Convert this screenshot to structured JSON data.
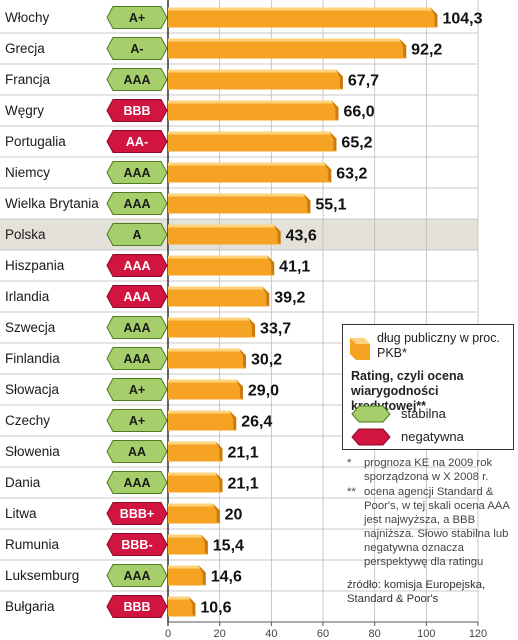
{
  "colors": {
    "bar": "#f6a323",
    "bar_top": "#fdd37b",
    "bar_side": "#c97b10",
    "stable": "#a6cf6b",
    "negative": "#d11440",
    "highlight_row": "#e3e1d8"
  },
  "chart_data": {
    "type": "bar",
    "orientation": "horizontal",
    "categories": [
      "Włochy",
      "Grecja",
      "Francja",
      "Węgry",
      "Portugalia",
      "Niemcy",
      "Wielka Brytania",
      "Polska",
      "Hiszpania",
      "Irlandia",
      "Szwecja",
      "Finlandia",
      "Słowacja",
      "Czechy",
      "Słowenia",
      "Dania",
      "Litwa",
      "Rumunia",
      "Luksemburg",
      "Bułgaria"
    ],
    "values": [
      104.3,
      92.2,
      67.7,
      66.0,
      65.2,
      63.2,
      55.1,
      43.6,
      41.1,
      39.2,
      33.7,
      30.2,
      29.0,
      26.4,
      21.1,
      21.1,
      20,
      15.4,
      14.6,
      10.6
    ],
    "value_labels": [
      "104,3",
      "92,2",
      "67,7",
      "66,0",
      "65,2",
      "63,2",
      "55,1",
      "43,6",
      "41,1",
      "39,2",
      "33,7",
      "30,2",
      "29,0",
      "26,4",
      "21,1",
      "21,1",
      "20",
      "15,4",
      "14,6",
      "10,6"
    ],
    "ratings": [
      "A+",
      "A-",
      "AAA",
      "BBB",
      "AA-",
      "AAA",
      "AAA",
      "A",
      "AAA",
      "AAA",
      "AAA",
      "AAA",
      "A+",
      "A+",
      "AA",
      "AAA",
      "BBB+",
      "BBB-",
      "AAA",
      "BBB"
    ],
    "outlooks": [
      "stable",
      "stable",
      "stable",
      "negative",
      "negative",
      "stable",
      "stable",
      "stable",
      "negative",
      "negative",
      "stable",
      "stable",
      "stable",
      "stable",
      "stable",
      "stable",
      "negative",
      "negative",
      "stable",
      "negative"
    ],
    "highlighted_category": "Polska",
    "xlim": [
      0,
      120
    ],
    "xticks": [
      0,
      20,
      40,
      60,
      80,
      100,
      120
    ],
    "grid": true
  },
  "legend": {
    "debt_label": "dług publiczny w proc. PKB*",
    "rating_title": "Rating, czyli ocena wiarygodności kredytowej**",
    "stable_label": "stabilna",
    "negative_label": "negatywna"
  },
  "footnotes": [
    {
      "mark": "*",
      "text": "prognoza KE na 2009 rok sporządzona w X 2008 r."
    },
    {
      "mark": "**",
      "text": "ocena agencji Standard & Poor's, w tej skali ocena AAA jest najwyższa, a BBB najniższa. Słowo stabilna lub negatywna oznacza perspektywę dla ratingu"
    }
  ],
  "source": "źródło: komisja Europejska, Standard & Poor's"
}
